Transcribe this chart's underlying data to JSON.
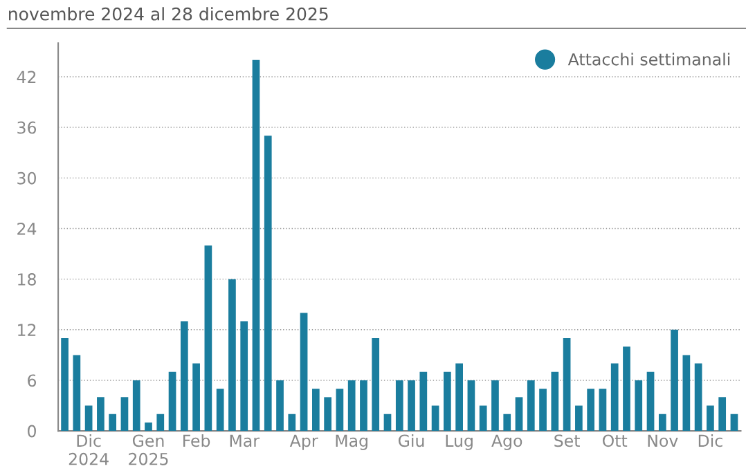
{
  "chart_data": {
    "type": "bar",
    "title": "novembre 2024 al 28 dicembre 2025",
    "categories": [
      null,
      null,
      "Dic\n2024",
      null,
      null,
      null,
      null,
      "Gen\n2025",
      null,
      null,
      null,
      "Feb",
      null,
      null,
      null,
      "Mar",
      null,
      null,
      null,
      null,
      "Apr",
      null,
      null,
      null,
      "Mag",
      null,
      null,
      null,
      null,
      "Giu",
      null,
      null,
      null,
      "Lug",
      null,
      null,
      null,
      "Ago",
      null,
      null,
      null,
      null,
      "Set",
      null,
      null,
      null,
      "Ott",
      null,
      null,
      null,
      "Nov",
      null,
      null,
      null,
      "Dic",
      null,
      null
    ],
    "series": [
      {
        "name": "Attacchi settimanali",
        "color": "#1a7d9e",
        "values": [
          11,
          9,
          3,
          4,
          2,
          4,
          6,
          1,
          2,
          7,
          13,
          8,
          22,
          5,
          18,
          13,
          44,
          35,
          6,
          2,
          14,
          5,
          4,
          5,
          6,
          6,
          11,
          2,
          6,
          6,
          7,
          3,
          7,
          8,
          6,
          3,
          6,
          2,
          4,
          6,
          5,
          7,
          11,
          3,
          5,
          5,
          8,
          10,
          6,
          7,
          2,
          12,
          9,
          8,
          3,
          4,
          2
        ]
      }
    ],
    "ylim": [
      0,
      46
    ],
    "yticks": [
      0,
      6,
      12,
      18,
      24,
      30,
      36,
      42
    ],
    "grid": "y",
    "legend": "top right"
  }
}
